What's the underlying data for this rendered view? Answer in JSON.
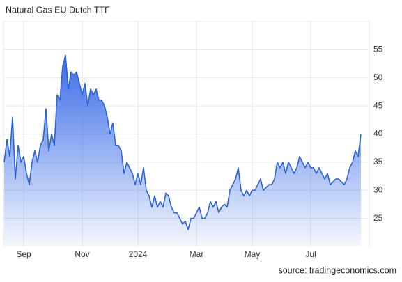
{
  "chart_data": {
    "type": "area",
    "title": "Natural Gas EU Dutch TTF",
    "source": "source: tradingeconomics.com",
    "categories": [
      null,
      null,
      null,
      null,
      null,
      null,
      null,
      "Sep",
      null,
      null,
      null,
      null,
      null,
      null,
      null,
      null,
      null,
      null,
      null,
      null,
      null,
      null,
      null,
      null,
      null,
      null,
      null,
      null,
      "Nov",
      null,
      null,
      null,
      null,
      null,
      null,
      null,
      null,
      null,
      null,
      null,
      null,
      null,
      null,
      null,
      null,
      null,
      null,
      null,
      "2024",
      null,
      null,
      null,
      null,
      null,
      null,
      null,
      null,
      null,
      null,
      null,
      null,
      null,
      null,
      null,
      null,
      null,
      null,
      null,
      null,
      "Mar",
      null,
      null,
      null,
      null,
      null,
      null,
      null,
      null,
      null,
      null,
      null,
      null,
      null,
      null,
      null,
      null,
      null,
      null,
      null,
      "May",
      null,
      null,
      null,
      null,
      null,
      null,
      null,
      null,
      null,
      null,
      null,
      null,
      null,
      null,
      null,
      null,
      null,
      null,
      null,
      null,
      "Jul",
      null,
      null,
      null,
      null,
      null,
      null,
      null,
      null,
      null,
      null,
      null,
      null,
      null,
      null,
      null,
      null,
      null,
      null
    ],
    "values": [
      35,
      39,
      36,
      43,
      32,
      38,
      35,
      36,
      33,
      31,
      35,
      37,
      35,
      38,
      39,
      44.5,
      37,
      40,
      38,
      47,
      46,
      52,
      54,
      48,
      51,
      50.5,
      51,
      49,
      47,
      49,
      45,
      48,
      47,
      48,
      46,
      46,
      45,
      43,
      40,
      42,
      38,
      38,
      37,
      33,
      35,
      34,
      33,
      31,
      33,
      31,
      34,
      30,
      29,
      27,
      29,
      27,
      28,
      27,
      29.5,
      29,
      27,
      26,
      26,
      25,
      24,
      24.5,
      23,
      25,
      25,
      26,
      27,
      25,
      25,
      26,
      28,
      27,
      28,
      26,
      27,
      27.5,
      27,
      30,
      31,
      32,
      34,
      30,
      29,
      30,
      29,
      30,
      30,
      31,
      32,
      30,
      30.5,
      31,
      31,
      32,
      35,
      34,
      35,
      33,
      35,
      34,
      33,
      34,
      36,
      35,
      34,
      35,
      34,
      34,
      33,
      34,
      33,
      32,
      33,
      31,
      31.5,
      32,
      32,
      31.5,
      31,
      32,
      34,
      35,
      37,
      36,
      40
    ],
    "color": "#2b63d9",
    "ylim": [
      20,
      60
    ],
    "yticks": [
      25,
      30,
      35,
      40,
      45,
      50,
      55
    ],
    "grid": true
  }
}
